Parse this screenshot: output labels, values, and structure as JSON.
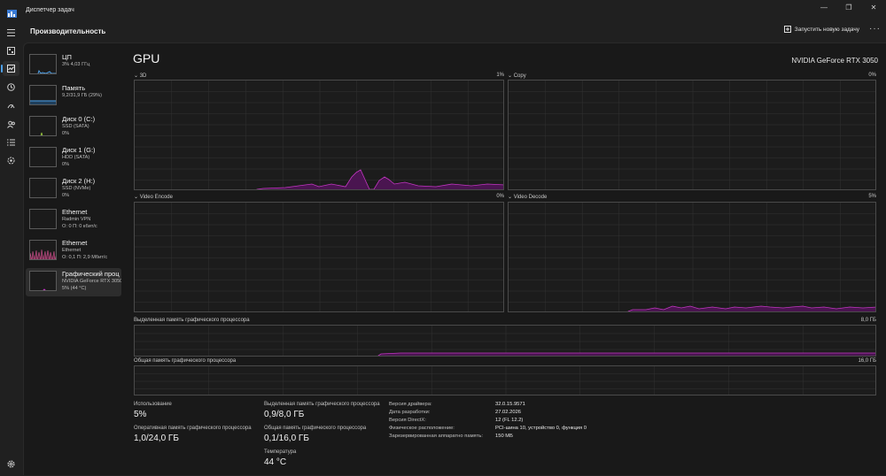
{
  "window": {
    "title": "Диспетчер задач"
  },
  "toolbar": {
    "section_title": "Производительность",
    "run_task_label": "Запустить новую задачу"
  },
  "devices": [
    {
      "name": "ЦП",
      "sub1": "3% 4,03 ГГц",
      "sub2": ""
    },
    {
      "name": "Память",
      "sub1": "9,2/31,9 ГБ (29%)",
      "sub2": ""
    },
    {
      "name": "Диск 0 (C:)",
      "sub1": "SSD (SATA)",
      "sub2": "0%"
    },
    {
      "name": "Диск 1 (G:)",
      "sub1": "HDD (SATA)",
      "sub2": "0%"
    },
    {
      "name": "Диск 2 (H:)",
      "sub1": "SSD (NVMe)",
      "sub2": "0%"
    },
    {
      "name": "Ethernet",
      "sub1": "Radmin VPN",
      "sub2": "О: 0 П: 0 кбит/с"
    },
    {
      "name": "Ethernet",
      "sub1": "Ethernet",
      "sub2": "О: 0,1 П: 2,9 Мбит/с"
    },
    {
      "name": "Графический проц",
      "sub1": "NVIDIA GeForce RTX 3050",
      "sub2": "5% (44 °C)"
    }
  ],
  "gpu": {
    "title": "GPU",
    "model": "NVIDIA GeForce RTX 3050",
    "engines": [
      {
        "name": "3D",
        "percent": "1%"
      },
      {
        "name": "Copy",
        "percent": "0%"
      },
      {
        "name": "Video Encode",
        "percent": "0%"
      },
      {
        "name": "Video Decode",
        "percent": "5%"
      }
    ],
    "dedicated_memory": {
      "label": "Выделенная память графического процессора",
      "max": "8,0 ГБ"
    },
    "shared_memory": {
      "label": "Общая память графического процессора",
      "max": "16,0 ГБ"
    }
  },
  "stats": {
    "usage_label": "Использование",
    "usage_value": "5%",
    "ram_label": "Оперативная память графического процессора",
    "ram_value": "1,0/24,0 ГБ",
    "dedicated_label": "Выделенная память графического процессора",
    "dedicated_value": "0,9/8,0 ГБ",
    "shared_label": "Общая память графического процессора",
    "shared_value": "0,1/16,0 ГБ",
    "temp_label": "Температура",
    "temp_value": "44 °C"
  },
  "details": [
    {
      "key": "Версия драйвера:",
      "value": "32.0.15.9571"
    },
    {
      "key": "Дата разработки:",
      "value": "27.02.2026"
    },
    {
      "key": "Версия DirectX:",
      "value": "12 (FL 12.2)"
    },
    {
      "key": "Физическое расположение:",
      "value": "PCI-шина 10, устройство 0, функция 0"
    },
    {
      "key": "Зарезервированная аппаратно память:",
      "value": "150 МБ"
    }
  ],
  "colors": {
    "background": "#191919",
    "accent_gpu": "#c236c2",
    "gpu_fill": "#4a1550",
    "grid": "#333333",
    "nav_accent": "#4ea0e8"
  },
  "icons": [
    "menu-icon",
    "performance-icon",
    "processes-icon",
    "app-history-icon",
    "startup-icon",
    "users-icon",
    "details-icon",
    "services-icon",
    "settings-icon"
  ]
}
